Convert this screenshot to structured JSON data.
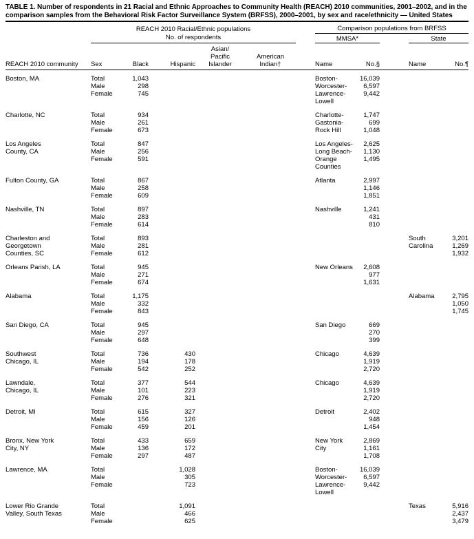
{
  "title": "TABLE 1. Number of respondents in 21 Racial and Ethnic Approaches to Community Health (REACH) 2010 communities, 2001–2002, and in the comparison samples from the Behavioral Risk Factor Surveillance System (BRFSS), 2000–2001, by sex and race/ethnicity — United States",
  "header": {
    "reach_group_line1": "REACH 2010 Racial/Ethnic populations",
    "reach_group_line2": "No. of respondents",
    "brfss_group": "Comparison populations from BRFSS",
    "mmsa": "MMSA*",
    "state": "State",
    "columns": {
      "community": "REACH 2010 community",
      "sex": "Sex",
      "black": "Black",
      "hispanic": "Hispanic",
      "api_lines": [
        "Asian/",
        "Pacific",
        "Islander"
      ],
      "ai_lines": [
        "American",
        "Indian†"
      ],
      "mmsa_name": "Name",
      "mmsa_no": "No.§",
      "state_name": "Name",
      "state_no": "No.¶"
    }
  },
  "groups": [
    {
      "community": [
        "Boston, MA"
      ],
      "sex": [
        "Total",
        "Male",
        "Female"
      ],
      "black": [
        "1,043",
        "298",
        "745"
      ],
      "hispanic": [],
      "api": [],
      "ai": [],
      "mmsa_name": [
        "Boston-",
        "Worcester-",
        "Lawrence-",
        "Lowell"
      ],
      "mmsa_no": [
        "16,039",
        "6,597",
        "9,442"
      ],
      "state_name": [],
      "state_no": []
    },
    {
      "community": [
        "Charlotte, NC"
      ],
      "sex": [
        "Total",
        "Male",
        "Female"
      ],
      "black": [
        "934",
        "261",
        "673"
      ],
      "hispanic": [],
      "api": [],
      "ai": [],
      "mmsa_name": [
        "Charlotte-",
        "Gastonia-",
        "Rock Hill"
      ],
      "mmsa_no": [
        "1,747",
        "699",
        "1,048"
      ],
      "state_name": [],
      "state_no": []
    },
    {
      "community": [
        "Los Angeles",
        "County, CA"
      ],
      "sex": [
        "Total",
        "Male",
        "Female"
      ],
      "black": [
        "847",
        "256",
        "591"
      ],
      "hispanic": [],
      "api": [],
      "ai": [],
      "mmsa_name": [
        "Los Angeles-",
        "Long Beach-",
        "Orange",
        "Counties"
      ],
      "mmsa_no": [
        "2,625",
        "1,130",
        "1,495"
      ],
      "state_name": [],
      "state_no": []
    },
    {
      "community": [
        "Fulton County, GA"
      ],
      "sex": [
        "Total",
        "Male",
        "Female"
      ],
      "black": [
        "867",
        "258",
        "609"
      ],
      "hispanic": [],
      "api": [],
      "ai": [],
      "mmsa_name": [
        "Atlanta"
      ],
      "mmsa_no": [
        "2,997",
        "1,146",
        "1,851"
      ],
      "state_name": [],
      "state_no": []
    },
    {
      "community": [
        "Nashville, TN"
      ],
      "sex": [
        "Total",
        "Male",
        "Female"
      ],
      "black": [
        "897",
        "283",
        "614"
      ],
      "hispanic": [],
      "api": [],
      "ai": [],
      "mmsa_name": [
        "Nashville"
      ],
      "mmsa_no": [
        "1,241",
        "431",
        "810"
      ],
      "state_name": [],
      "state_no": []
    },
    {
      "community": [
        "Charleston and",
        "Georgetown",
        "Counties, SC"
      ],
      "sex": [
        "Total",
        "Male",
        "Female"
      ],
      "black": [
        "893",
        "281",
        "612"
      ],
      "hispanic": [],
      "api": [],
      "ai": [],
      "mmsa_name": [],
      "mmsa_no": [],
      "state_name": [
        "South",
        "Carolina"
      ],
      "state_no": [
        "3,201",
        "1,269",
        "1,932"
      ]
    },
    {
      "community": [
        "Orleans Parish, LA"
      ],
      "sex": [
        "Total",
        "Male",
        "Female"
      ],
      "black": [
        "945",
        "271",
        "674"
      ],
      "hispanic": [],
      "api": [],
      "ai": [],
      "mmsa_name": [
        "New Orleans"
      ],
      "mmsa_no": [
        "2,608",
        "977",
        "1,631"
      ],
      "state_name": [],
      "state_no": []
    },
    {
      "community": [
        "Alabama"
      ],
      "sex": [
        "Total",
        "Male",
        "Female"
      ],
      "black": [
        "1,175",
        "332",
        "843"
      ],
      "hispanic": [],
      "api": [],
      "ai": [],
      "mmsa_name": [],
      "mmsa_no": [],
      "state_name": [
        "Alabama"
      ],
      "state_no": [
        "2,795",
        "1,050",
        "1,745"
      ]
    },
    {
      "community": [
        "San Diego, CA"
      ],
      "sex": [
        "Total",
        "Male",
        "Female"
      ],
      "black": [
        "945",
        "297",
        "648"
      ],
      "hispanic": [],
      "api": [],
      "ai": [],
      "mmsa_name": [
        "San Diego"
      ],
      "mmsa_no": [
        "669",
        "270",
        "399"
      ],
      "state_name": [],
      "state_no": []
    },
    {
      "community": [
        "Southwest",
        "Chicago, IL"
      ],
      "sex": [
        "Total",
        "Male",
        "Female"
      ],
      "black": [
        "736",
        "194",
        "542"
      ],
      "hispanic": [
        "430",
        "178",
        "252"
      ],
      "api": [],
      "ai": [],
      "mmsa_name": [
        "Chicago"
      ],
      "mmsa_no": [
        "4,639",
        "1,919",
        "2,720"
      ],
      "state_name": [],
      "state_no": []
    },
    {
      "community": [
        "Lawndale,",
        "Chicago, IL"
      ],
      "sex": [
        "Total",
        "Male",
        "Female"
      ],
      "black": [
        "377",
        "101",
        "276"
      ],
      "hispanic": [
        "544",
        "223",
        "321"
      ],
      "api": [],
      "ai": [],
      "mmsa_name": [
        "Chicago"
      ],
      "mmsa_no": [
        "4,639",
        "1,919",
        "2,720"
      ],
      "state_name": [],
      "state_no": []
    },
    {
      "community": [
        "Detroit, MI"
      ],
      "sex": [
        "Total",
        "Male",
        "Female"
      ],
      "black": [
        "615",
        "156",
        "459"
      ],
      "hispanic": [
        "327",
        "126",
        "201"
      ],
      "api": [],
      "ai": [],
      "mmsa_name": [
        "Detroit"
      ],
      "mmsa_no": [
        "2,402",
        "948",
        "1,454"
      ],
      "state_name": [],
      "state_no": []
    },
    {
      "community": [
        "Bronx, New York",
        "City, NY"
      ],
      "sex": [
        "Total",
        "Male",
        "Female"
      ],
      "black": [
        "433",
        "136",
        "297"
      ],
      "hispanic": [
        "659",
        "172",
        "487"
      ],
      "api": [],
      "ai": [],
      "mmsa_name": [
        "New York",
        "City"
      ],
      "mmsa_no": [
        "2,869",
        "1,161",
        "1,708"
      ],
      "state_name": [],
      "state_no": []
    },
    {
      "community": [
        "Lawrence, MA"
      ],
      "sex": [
        "Total",
        "Male",
        "Female"
      ],
      "black": [],
      "hispanic": [
        "1,028",
        "305",
        "723"
      ],
      "api": [],
      "ai": [],
      "mmsa_name": [
        "Boston-",
        "Worcester-",
        "Lawrence-",
        "Lowell"
      ],
      "mmsa_no": [
        "16,039",
        "6,597",
        "9,442"
      ],
      "state_name": [],
      "state_no": []
    },
    {
      "community": [
        "Lower Rio Grande",
        "Valley, South Texas"
      ],
      "sex": [
        "Total",
        "Male",
        "Female"
      ],
      "black": [],
      "hispanic": [
        "1,091",
        "466",
        "625"
      ],
      "api": [],
      "ai": [],
      "mmsa_name": [],
      "mmsa_no": [],
      "state_name": [
        "Texas"
      ],
      "state_no": [
        "5,916",
        "2,437",
        "3,479"
      ]
    }
  ]
}
